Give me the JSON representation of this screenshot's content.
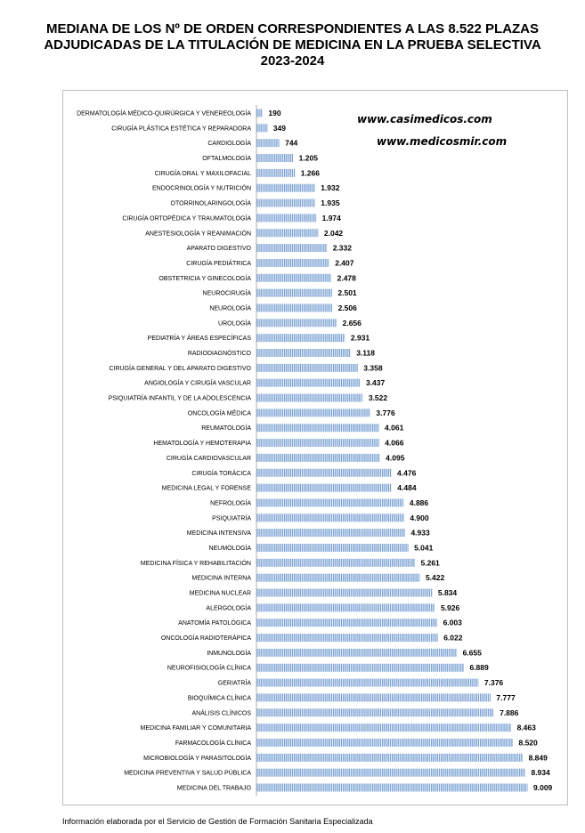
{
  "title": "MEDIANA DE LOS Nº DE ORDEN CORRESPONDIENTES A LAS 8.522 PLAZAS ADJUDICADAS DE LA TITULACIÓN DE MEDICINA EN LA PRUEBA SELECTIVA 2023-2024",
  "watermarks": [
    "www.casimedicos.com",
    "www.medicosmir.com"
  ],
  "footer": "Información elaborada por el Servicio de Gestión de Formación Sanitaria Especializada",
  "colors": {
    "bar": "#7ea4d4",
    "bar_stripe": "#ffffff",
    "text": "#000000",
    "frame": "#bfbfbf"
  },
  "chart_data": {
    "type": "bar",
    "orientation": "horizontal",
    "grid": false,
    "legend": "none",
    "xlim": [
      0,
      9009
    ],
    "categories": [
      "DERMATOLOGÍA MÉDICO-QUIRÚRGICA Y VENEREOLOGÍA",
      "CIRUGÍA PLÁSTICA ESTÉTICA Y REPARADORA",
      "CARDIOLOGÍA",
      "OFTALMOLOGÍA",
      "CIRUGÍA ORAL Y MAXILOFACIAL",
      "ENDOCRINOLOGÍA Y NUTRICIÓN",
      "OTORRINOLARINGOLOGÍA",
      "CIRUGÍA ORTOPÉDICA Y TRAUMATOLOGÍA",
      "ANESTESIOLOGÍA Y REANIMACIÓN",
      "APARATO DIGESTIVO",
      "CIRUGÍA PEDIÁTRICA",
      "OBSTETRICIA Y GINECOLOGÍA",
      "NEUROCIRUGÍA",
      "NEUROLOGÍA",
      "UROLOGÍA",
      "PEDIATRÍA Y ÁREAS ESPECÍFICAS",
      "RADIODIAGNÓSTICO",
      "CIRUGÍA GENERAL Y DEL APARATO DIGESTIVO",
      "ANGIOLOGÍA Y CIRUGÍA VASCULAR",
      "PSIQUIATRÍA INFANTIL Y DE LA ADOLESCENCIA",
      "ONCOLOGÍA MÉDICA",
      "REUMATOLOGÍA",
      "HEMATOLOGÍA Y HEMOTERAPIA",
      "CIRUGÍA CARDIOVASCULAR",
      "CIRUGÍA TORÁCICA",
      "MEDICINA LEGAL Y FORENSE",
      "NEFROLOGÍA",
      "PSIQUIATRÍA",
      "MEDICINA INTENSIVA",
      "NEUMOLOGÍA",
      "MEDICINA FÍSICA Y REHABILITACIÓN",
      "MEDICINA INTERNA",
      "MEDICINA NUCLEAR",
      "ALERGOLOGÍA",
      "ANATOMÍA PATOLÓGICA",
      "ONCOLOGÍA RADIOTERÁPICA",
      "INMUNOLOGÍA",
      "NEUROFISIOLOGÍA CLÍNICA",
      "GERIATRÍA",
      "BIOQUÍMICA CLÍNICA",
      "ANÁLISIS CLÍNICOS",
      "MEDICINA FAMILIAR Y COMUNITARIA",
      "FARMACOLOGÍA CLÍNICA",
      "MICROBIOLOGÍA Y PARASITOLOGÍA",
      "MEDICINA PREVENTIVA Y SALUD PÚBLICA",
      "MEDICINA DEL TRABAJO"
    ],
    "values": [
      190,
      349,
      744,
      1205,
      1266,
      1932,
      1935,
      1974,
      2042,
      2332,
      2407,
      2478,
      2501,
      2506,
      2656,
      2931,
      3118,
      3358,
      3437,
      3522,
      3776,
      4061,
      4066,
      4095,
      4476,
      4484,
      4886,
      4900,
      4933,
      5041,
      5261,
      5422,
      5834,
      5926,
      6003,
      6022,
      6655,
      6889,
      7376,
      7777,
      7886,
      8463,
      8520,
      8849,
      8934,
      9009
    ],
    "value_labels": [
      "190",
      "349",
      "744",
      "1.205",
      "1.266",
      "1.932",
      "1.935",
      "1.974",
      "2.042",
      "2.332",
      "2.407",
      "2.478",
      "2.501",
      "2.506",
      "2.656",
      "2.931",
      "3.118",
      "3.358",
      "3.437",
      "3.522",
      "3.776",
      "4.061",
      "4.066",
      "4.095",
      "4.476",
      "4.484",
      "4.886",
      "4.900",
      "4.933",
      "5.041",
      "5.261",
      "5.422",
      "5.834",
      "5.926",
      "6.003",
      "6.022",
      "6.655",
      "6.889",
      "7.376",
      "7.777",
      "7.886",
      "8.463",
      "8.520",
      "8.849",
      "8.934",
      "9.009"
    ]
  }
}
